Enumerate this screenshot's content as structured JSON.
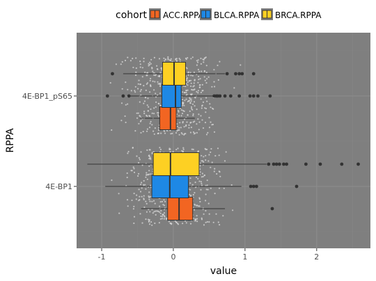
{
  "chart_data": {
    "type": "boxplot",
    "orientation": "horizontal",
    "xlabel": "value",
    "ylabel": "RPPA",
    "xlim": [
      -1.35,
      2.75
    ],
    "x_ticks": [
      -1,
      0,
      1,
      2
    ],
    "categories": [
      "4E-BP1",
      "4E-BP1_pS65"
    ],
    "legend": {
      "title": "cohort",
      "position": "top",
      "entries": [
        "ACC.RPPA",
        "BLCA.RPPA",
        "BRCA.RPPA"
      ]
    },
    "colors": {
      "panel": "#7f7f7f",
      "grid_major": "#8d8d8d",
      "grid_minor": "#868686",
      "points": "#d9d9d9",
      "outlier": "#333333",
      "ACC.RPPA": "#f26522",
      "BLCA.RPPA": "#1e88e5",
      "BRCA.RPPA": "#fdd023"
    },
    "grid": true,
    "jitter_points": true,
    "series": [
      {
        "name": "ACC.RPPA",
        "boxes": [
          {
            "category": "4E-BP1",
            "whisker_low": -0.45,
            "q1": -0.08,
            "median": 0.08,
            "q3": 0.27,
            "whisker_high": 0.72,
            "outliers": [
              1.38
            ]
          },
          {
            "category": "4E-BP1_pS65",
            "whisker_low": -0.47,
            "q1": -0.19,
            "median": -0.04,
            "q3": 0.04,
            "whisker_high": 0.3,
            "outliers": []
          }
        ]
      },
      {
        "name": "BLCA.RPPA",
        "boxes": [
          {
            "category": "4E-BP1",
            "whisker_low": -0.95,
            "q1": -0.3,
            "median": -0.05,
            "q3": 0.21,
            "whisker_high": 0.95,
            "outliers": [
              1.08,
              1.12,
              1.16,
              1.72
            ]
          },
          {
            "category": "4E-BP1_pS65",
            "whisker_low": -0.6,
            "q1": -0.16,
            "median": 0.03,
            "q3": 0.11,
            "whisker_high": 0.55,
            "outliers": [
              -0.92,
              -0.7,
              -0.62,
              0.57,
              0.6,
              0.62,
              0.65,
              0.72,
              0.8,
              0.92,
              1.07,
              1.12,
              1.18,
              1.35
            ]
          }
        ]
      },
      {
        "name": "BRCA.RPPA",
        "boxes": [
          {
            "category": "4E-BP1",
            "whisker_low": -1.2,
            "q1": -0.28,
            "median": -0.04,
            "q3": 0.36,
            "whisker_high": 1.3,
            "outliers": [
              1.33,
              1.4,
              1.44,
              1.48,
              1.54,
              1.58,
              1.85,
              2.05,
              2.35,
              2.58
            ]
          },
          {
            "category": "4E-BP1_pS65",
            "whisker_low": -0.7,
            "q1": -0.15,
            "median": 0.01,
            "q3": 0.17,
            "whisker_high": 0.72,
            "outliers": [
              -0.85,
              0.75,
              0.87,
              0.92,
              0.96,
              1.12
            ]
          }
        ]
      }
    ]
  }
}
